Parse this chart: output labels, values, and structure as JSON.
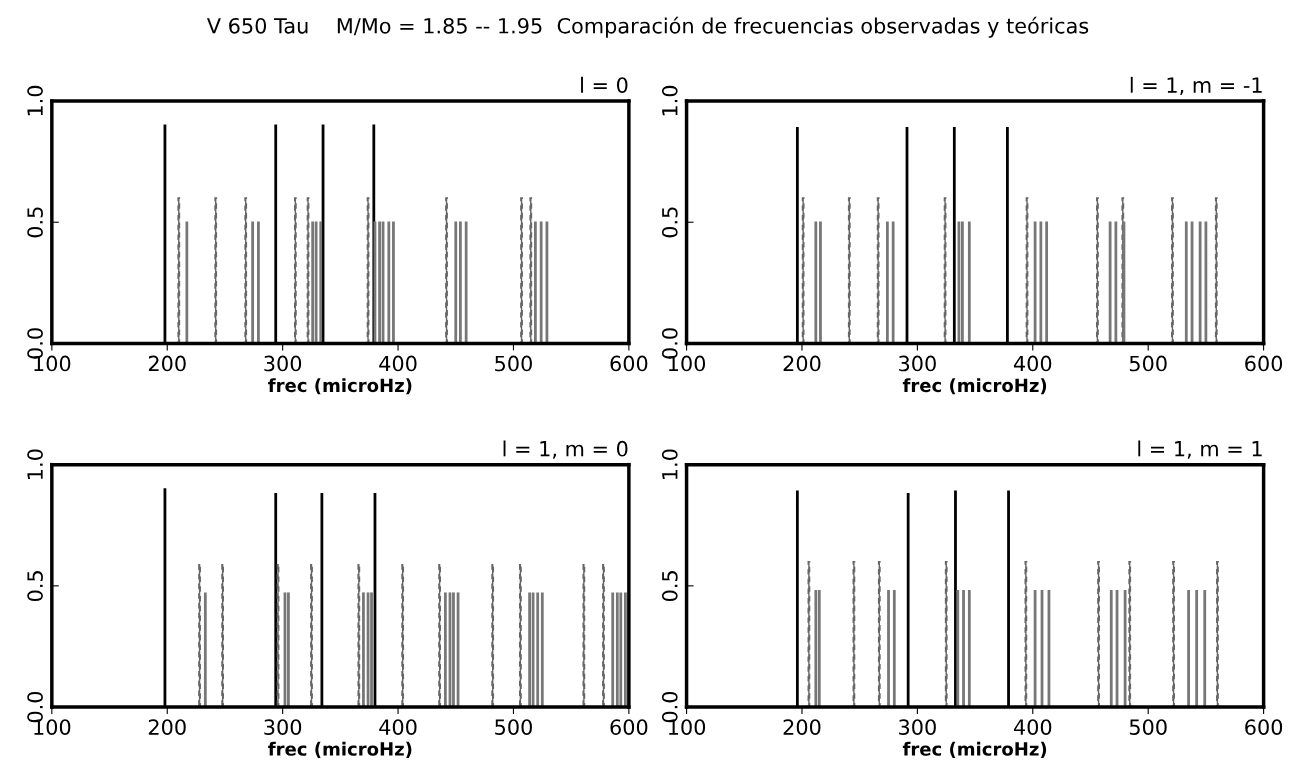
{
  "chart_data": [
    {
      "type": "bar",
      "title": "l = 0",
      "annotations": [
        "V 650 Tau    M/Mo = 1.85 -- 1.95  Comparación de frecuencias observadas y teóricas"
      ],
      "xlabel": "frec (microHz)",
      "xlim": [
        100,
        600
      ],
      "xticks": [
        100,
        200,
        300,
        400,
        500,
        600
      ],
      "ylim": [
        0,
        1
      ],
      "yticks": [
        {
          "value": 0,
          "label": "0.0"
        },
        {
          "value": 0.5,
          "label": "0.5"
        },
        {
          "value": 1,
          "label": "1.0"
        }
      ],
      "grid": false,
      "series": [
        {
          "color": "#000000",
          "line_style": "solid",
          "x": [
            198,
            294,
            335,
            379
          ],
          "values": [
            0.9,
            0.9,
            0.9,
            0.9
          ]
        },
        {
          "color": "#666666",
          "line_style": "dashed",
          "x": [
            210,
            242,
            268,
            311,
            322,
            374,
            442,
            507,
            515
          ],
          "values": [
            0.6,
            0.6,
            0.6,
            0.6,
            0.6,
            0.6,
            0.6,
            0.6,
            0.6
          ]
        },
        {
          "color": "#777777",
          "line_style": "solid",
          "x": [
            217,
            274,
            279,
            326,
            329,
            333,
            380,
            384,
            387,
            392,
            396,
            450,
            454,
            459,
            519,
            524,
            529
          ],
          "values": [
            0.5,
            0.5,
            0.5,
            0.5,
            0.5,
            0.5,
            0.5,
            0.5,
            0.5,
            0.5,
            0.5,
            0.5,
            0.5,
            0.5,
            0.5,
            0.5,
            0.5
          ]
        }
      ]
    },
    {
      "type": "bar",
      "title": "l = 1, m = -1",
      "xlabel": "frec (microHz)",
      "xlim": [
        100,
        600
      ],
      "xticks": [
        100,
        200,
        300,
        400,
        500,
        600
      ],
      "ylim": [
        0,
        1
      ],
      "yticks": [
        {
          "value": 0,
          "label": "0.0"
        },
        {
          "value": 0.5,
          "label": "0.5"
        },
        {
          "value": 1,
          "label": "1.0"
        }
      ],
      "grid": false,
      "series": [
        {
          "color": "#000000",
          "line_style": "solid",
          "x": [
            196,
            291,
            332,
            378
          ],
          "values": [
            0.89,
            0.89,
            0.89,
            0.89
          ]
        },
        {
          "color": "#666666",
          "line_style": "dashed",
          "x": [
            201,
            241,
            266,
            324,
            395,
            456,
            478,
            521,
            559
          ],
          "values": [
            0.6,
            0.6,
            0.6,
            0.6,
            0.6,
            0.6,
            0.6,
            0.6,
            0.6
          ]
        },
        {
          "color": "#777777",
          "line_style": "solid",
          "x": [
            212,
            216,
            274,
            279,
            336,
            339,
            345,
            402,
            407,
            412,
            467,
            472,
            479,
            533,
            538,
            545,
            550
          ],
          "values": [
            0.5,
            0.5,
            0.5,
            0.5,
            0.5,
            0.5,
            0.5,
            0.5,
            0.5,
            0.5,
            0.5,
            0.5,
            0.5,
            0.5,
            0.5,
            0.5,
            0.5
          ]
        }
      ]
    },
    {
      "type": "bar",
      "title": "l = 1, m = 0",
      "xlabel": "frec (microHz)",
      "xlim": [
        100,
        600
      ],
      "xticks": [
        100,
        200,
        300,
        400,
        500,
        600
      ],
      "ylim": [
        0,
        1
      ],
      "yticks": [
        {
          "value": 0,
          "label": "0.0"
        },
        {
          "value": 0.5,
          "label": "0.5"
        },
        {
          "value": 1,
          "label": "1.0"
        }
      ],
      "grid": false,
      "series": [
        {
          "color": "#000000",
          "line_style": "solid",
          "x": [
            198,
            294,
            334,
            380
          ],
          "values": [
            0.9,
            0.88,
            0.88,
            0.88
          ]
        },
        {
          "color": "#666666",
          "line_style": "dashed",
          "x": [
            228,
            248,
            296,
            325,
            366,
            404,
            436,
            482,
            506,
            561,
            578
          ],
          "values": [
            0.59,
            0.59,
            0.59,
            0.59,
            0.59,
            0.59,
            0.59,
            0.59,
            0.59,
            0.59,
            0.59
          ]
        },
        {
          "color": "#777777",
          "line_style": "solid",
          "x": [
            233,
            302,
            305,
            370,
            374,
            377,
            441,
            445,
            448,
            452,
            514,
            517,
            521,
            525,
            586,
            590,
            593,
            597
          ],
          "values": [
            0.47,
            0.47,
            0.47,
            0.47,
            0.47,
            0.47,
            0.47,
            0.47,
            0.47,
            0.47,
            0.47,
            0.47,
            0.47,
            0.47,
            0.47,
            0.47,
            0.47,
            0.47
          ]
        }
      ]
    },
    {
      "type": "bar",
      "title": "l = 1, m = 1",
      "xlabel": "frec (microHz)",
      "xlim": [
        100,
        600
      ],
      "xticks": [
        100,
        200,
        300,
        400,
        500,
        600
      ],
      "ylim": [
        0,
        1
      ],
      "yticks": [
        {
          "value": 0,
          "label": "0.0"
        },
        {
          "value": 0.5,
          "label": "0.5"
        },
        {
          "value": 1,
          "label": "1.0"
        }
      ],
      "grid": false,
      "series": [
        {
          "color": "#000000",
          "line_style": "solid",
          "x": [
            196,
            292,
            333,
            379
          ],
          "values": [
            0.89,
            0.88,
            0.89,
            0.89
          ]
        },
        {
          "color": "#666666",
          "line_style": "dashed",
          "x": [
            206,
            245,
            267,
            325,
            394,
            457,
            484,
            522,
            560
          ],
          "values": [
            0.6,
            0.6,
            0.6,
            0.6,
            0.6,
            0.6,
            0.6,
            0.6,
            0.6
          ]
        },
        {
          "color": "#777777",
          "line_style": "solid",
          "x": [
            212,
            215,
            275,
            280,
            335,
            340,
            345,
            402,
            408,
            414,
            468,
            473,
            480,
            535,
            542,
            549
          ],
          "values": [
            0.48,
            0.48,
            0.48,
            0.48,
            0.48,
            0.48,
            0.48,
            0.48,
            0.48,
            0.48,
            0.48,
            0.48,
            0.48,
            0.48,
            0.48,
            0.48
          ]
        }
      ]
    }
  ]
}
